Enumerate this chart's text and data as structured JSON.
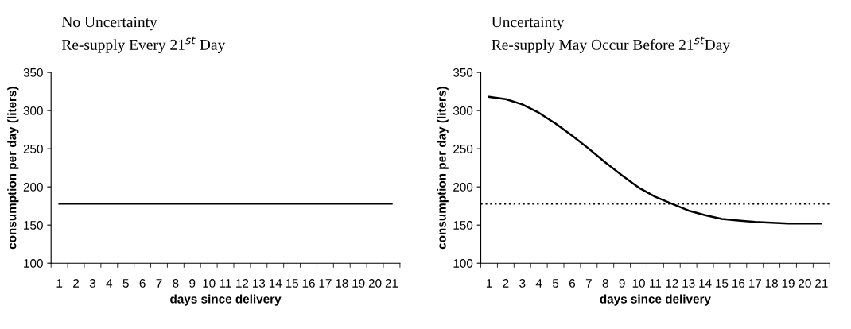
{
  "chart_data": [
    {
      "type": "line",
      "title": "No Uncertainty",
      "subtitle": "Re-supply Every 21$^{st}$ Day",
      "xlabel": "days since delivery",
      "ylabel": "consumption per day (liters)",
      "categories": [
        "1",
        "2",
        "3",
        "4",
        "5",
        "6",
        "7",
        "8",
        "9",
        "10",
        "11",
        "12",
        "13",
        "14",
        "15",
        "16",
        "17",
        "18",
        "19",
        "20",
        "21"
      ],
      "series": [
        {
          "color": "#000000",
          "values": [
            178,
            178,
            178,
            178,
            178,
            178,
            178,
            178,
            178,
            178,
            178,
            178,
            178,
            178,
            178,
            178,
            178,
            178,
            178,
            178,
            178
          ]
        }
      ],
      "ylim": [
        100,
        350
      ],
      "yticks": [
        100,
        150,
        200,
        250,
        300,
        350
      ],
      "grid": false,
      "legend": false,
      "marker": "none",
      "line_style": "solid"
    },
    {
      "type": "line",
      "title": "Uncertainty",
      "subtitle": "Re-supply May Occur Before 21$^{st}$Day",
      "xlabel": "days since delivery",
      "ylabel": "consumption per day (liters)",
      "categories": [
        "1",
        "2",
        "3",
        "4",
        "5",
        "6",
        "7",
        "8",
        "9",
        "10",
        "11",
        "12",
        "13",
        "14",
        "15",
        "16",
        "17",
        "18",
        "19",
        "20",
        "21"
      ],
      "series": [
        {
          "color": "#000000",
          "values": [
            318,
            315,
            308,
            297,
            283,
            267,
            250,
            232,
            215,
            199,
            187,
            178,
            169,
            163,
            158,
            156,
            154,
            153,
            152,
            152,
            152
          ]
        }
      ],
      "ref_lines": [
        {
          "axis": "y",
          "value": 178,
          "color": "#000000",
          "line_style": "dotted"
        }
      ],
      "ylim": [
        100,
        350
      ],
      "yticks": [
        100,
        150,
        200,
        250,
        300,
        350
      ],
      "grid": false,
      "legend": false,
      "marker": "none",
      "line_style": "solid"
    }
  ]
}
